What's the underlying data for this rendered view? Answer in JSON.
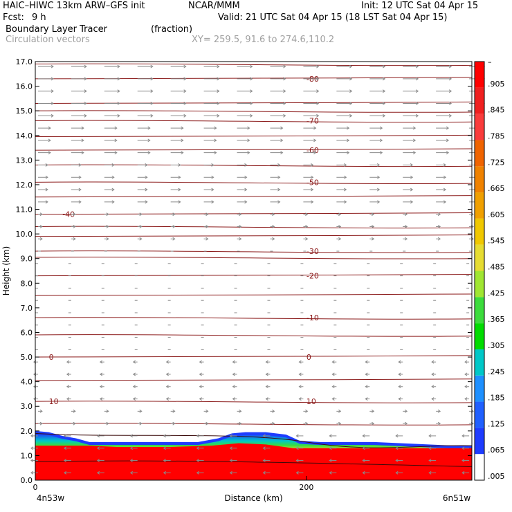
{
  "header": {
    "model": "HAIC–HIWC 13km ARW–GFS init",
    "org": "NCAR/MMM",
    "init": "Init: 12 UTC Sat 04 Apr 15",
    "fcst_label": "Fcst:",
    "fcst_value": "9 h",
    "valid": "Valid: 21 UTC Sat 04 Apr 15 (18 LST Sat 04 Apr 15)",
    "field": "Boundary Layer Tracer",
    "units": "(fraction)",
    "vectors": "Circulation vectors",
    "xy": "XY= 259.5, 91.6 to 274.6,110.2"
  },
  "chart_data": {
    "type": "heatmap",
    "title": "Boundary Layer Tracer",
    "xlabel": "Distance (km)",
    "ylabel": "Height (km)",
    "xlim": [
      0,
      322
    ],
    "ylim": [
      0,
      17
    ],
    "x_ticks": [
      0,
      200
    ],
    "x_tick_labels": [
      "0",
      "200"
    ],
    "x_end_labels": {
      "left": "4n53w",
      "right": "6n51w"
    },
    "y_ticks": [
      0,
      1,
      2,
      3,
      4,
      5,
      6,
      7,
      8,
      9,
      10,
      11,
      12,
      13,
      14,
      15,
      16,
      17
    ],
    "y_tick_labels": [
      "0.0",
      "1.0",
      "2.0",
      "3.0",
      "4.0",
      "5.0",
      "6.0",
      "7.0",
      "8.0",
      "9.0",
      "10.0",
      "11.0",
      "12.0",
      "13.0",
      "14.0",
      "15.0",
      "16.0",
      "17.0"
    ],
    "colorbar": {
      "labels": [
        ".005",
        ".065",
        ".125",
        ".185",
        ".245",
        ".305",
        ".365",
        ".425",
        ".485",
        ".545",
        ".605",
        ".665",
        ".725",
        ".785",
        ".845",
        ".905"
      ],
      "colors": [
        "#ffffff",
        "#1e3cff",
        "#2060ff",
        "#1e90ff",
        "#00c8c8",
        "#00dc00",
        "#3cdc3c",
        "#a0e632",
        "#e6dc32",
        "#f0c800",
        "#f0a000",
        "#f08200",
        "#f06400",
        "#fa3c3c",
        "#f02020",
        "#ff0000"
      ],
      "top_label": "–"
    },
    "tracer_top_km": [
      [
        0,
        2.0
      ],
      [
        10,
        1.95
      ],
      [
        20,
        1.8
      ],
      [
        30,
        1.7
      ],
      [
        40,
        1.55
      ],
      [
        50,
        1.55
      ],
      [
        60,
        1.55
      ],
      [
        80,
        1.55
      ],
      [
        100,
        1.55
      ],
      [
        120,
        1.55
      ],
      [
        135,
        1.7
      ],
      [
        145,
        1.9
      ],
      [
        155,
        1.95
      ],
      [
        170,
        1.95
      ],
      [
        185,
        1.85
      ],
      [
        195,
        1.6
      ],
      [
        210,
        1.55
      ],
      [
        230,
        1.55
      ],
      [
        250,
        1.55
      ],
      [
        270,
        1.5
      ],
      [
        290,
        1.45
      ],
      [
        310,
        1.4
      ],
      [
        322,
        1.4
      ]
    ],
    "full_top_km": [
      [
        0,
        1.4
      ],
      [
        30,
        1.4
      ],
      [
        40,
        1.4
      ],
      [
        60,
        1.35
      ],
      [
        100,
        1.35
      ],
      [
        130,
        1.4
      ],
      [
        150,
        1.5
      ],
      [
        170,
        1.45
      ],
      [
        190,
        1.3
      ],
      [
        200,
        1.3
      ],
      [
        220,
        1.3
      ],
      [
        260,
        1.3
      ],
      [
        300,
        1.3
      ],
      [
        322,
        1.3
      ]
    ],
    "temperature_contours": [
      {
        "label": "-80",
        "level_km": 16.3,
        "label_x_km": 200
      },
      {
        "label": "-70",
        "level_km": 14.6,
        "label_x_km": 200
      },
      {
        "label": "-60",
        "level_km": 13.4,
        "label_x_km": 200
      },
      {
        "label": "-50",
        "level_km": 12.1,
        "label_x_km": 200
      },
      {
        "label": "-40",
        "level_km": 10.8,
        "label_x_km": 20
      },
      {
        "label": "-30",
        "level_km": 9.3,
        "label_x_km": 200
      },
      {
        "label": "-20",
        "level_km": 8.3,
        "label_x_km": 200
      },
      {
        "label": "-10",
        "level_km": 6.6,
        "label_x_km": 200
      },
      {
        "label": "0",
        "level_km": 5.0,
        "label_x_km": 10
      },
      {
        "label": "0",
        "level_km": 5.0,
        "label_x_km": 200
      },
      {
        "label": "10",
        "level_km": 3.2,
        "label_x_km": 10
      },
      {
        "label": "10",
        "level_km": 3.2,
        "label_x_km": 200
      }
    ],
    "extra_contour_levels_km": [
      16.9,
      15.3,
      15.0,
      13.95,
      12.8,
      11.5,
      10.3,
      9.9,
      9.05,
      7.5,
      5.9,
      4.05,
      2.3
    ]
  }
}
